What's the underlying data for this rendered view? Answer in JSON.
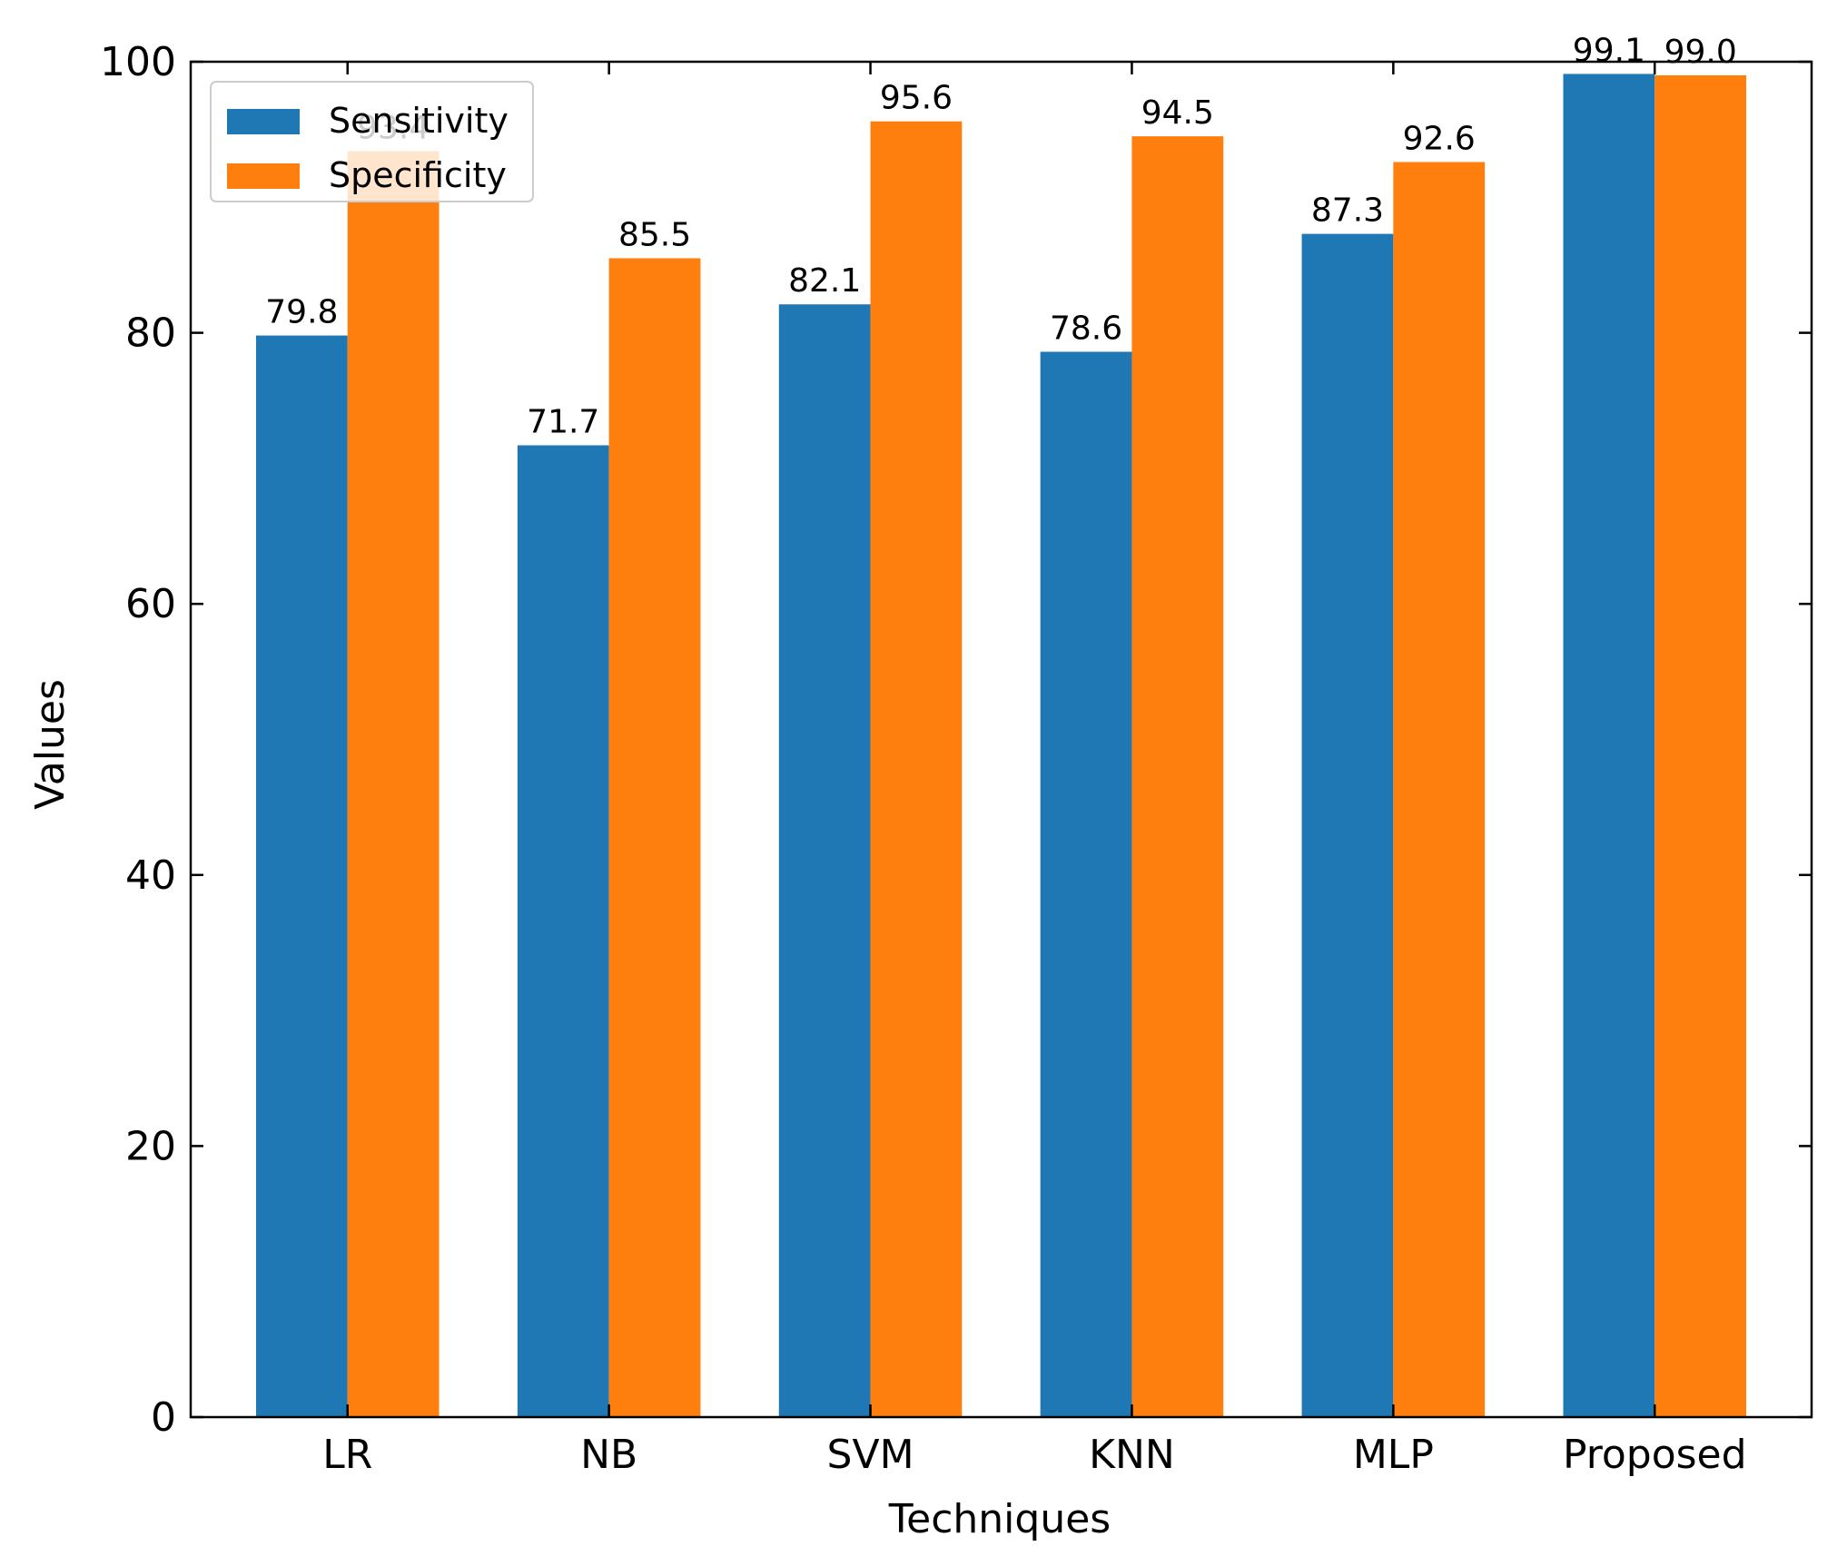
{
  "chart_data": {
    "type": "bar",
    "xlabel": "Techniques",
    "ylabel": "Values",
    "categories": [
      "LR",
      "NB",
      "SVM",
      "KNN",
      "MLP",
      "Proposed"
    ],
    "series": [
      {
        "name": "Sensitivity",
        "color": "#1f77b4",
        "values": [
          79.8,
          71.7,
          82.1,
          78.6,
          87.3,
          99.1
        ]
      },
      {
        "name": "Specificity",
        "color": "#ff7f0e",
        "values": [
          93.4,
          85.5,
          95.6,
          94.5,
          92.6,
          99.0
        ]
      }
    ],
    "value_labels": [
      [
        "79.8",
        "71.7",
        "82.1",
        "78.6",
        "87.3",
        "99.1"
      ],
      [
        "93.4",
        "85.5",
        "95.6",
        "94.5",
        "92.6",
        "99.0"
      ]
    ],
    "ylim": [
      0,
      100
    ],
    "yticks": [
      0,
      20,
      40,
      60,
      80,
      100
    ],
    "legend_position": "upper-left",
    "grid": false
  }
}
